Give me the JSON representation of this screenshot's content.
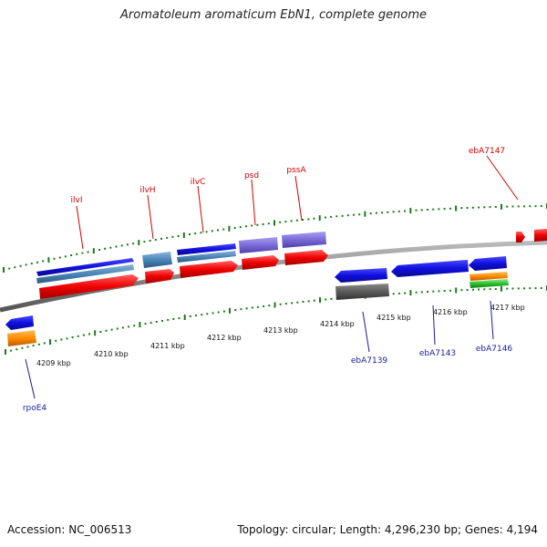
{
  "title": "Aromatoleum aromaticum EbN1, complete genome",
  "footer": {
    "accession": "Accession: NC_006513",
    "summary": "Topology: circular; Length: 4,296,230 bp; Genes: 4,194"
  },
  "colors": {
    "forward_label": "#d40000",
    "reverse_label": "#1a1aa0",
    "backbone": "#888888",
    "tick": "#1a7a1a"
  },
  "ticks": [
    {
      "label": "4209 kbp"
    },
    {
      "label": "4210 kbp"
    },
    {
      "label": "4211 kbp"
    },
    {
      "label": "4212 kbp"
    },
    {
      "label": "4213 kbp"
    },
    {
      "label": "4214 kbp"
    },
    {
      "label": "4215 kbp"
    },
    {
      "label": "4216 kbp"
    },
    {
      "label": "4217 kbp"
    }
  ],
  "genes": [
    {
      "name": "ilvI",
      "strand": "forward"
    },
    {
      "name": "ilvH",
      "strand": "forward"
    },
    {
      "name": "ilvC",
      "strand": "forward"
    },
    {
      "name": "psd",
      "strand": "forward"
    },
    {
      "name": "pssA",
      "strand": "forward"
    },
    {
      "name": "ebA7147",
      "strand": "forward"
    },
    {
      "name": "rpoE4",
      "strand": "reverse"
    },
    {
      "name": "ebA7139",
      "strand": "reverse"
    },
    {
      "name": "ebA7143",
      "strand": "reverse"
    },
    {
      "name": "ebA7146",
      "strand": "reverse"
    }
  ]
}
